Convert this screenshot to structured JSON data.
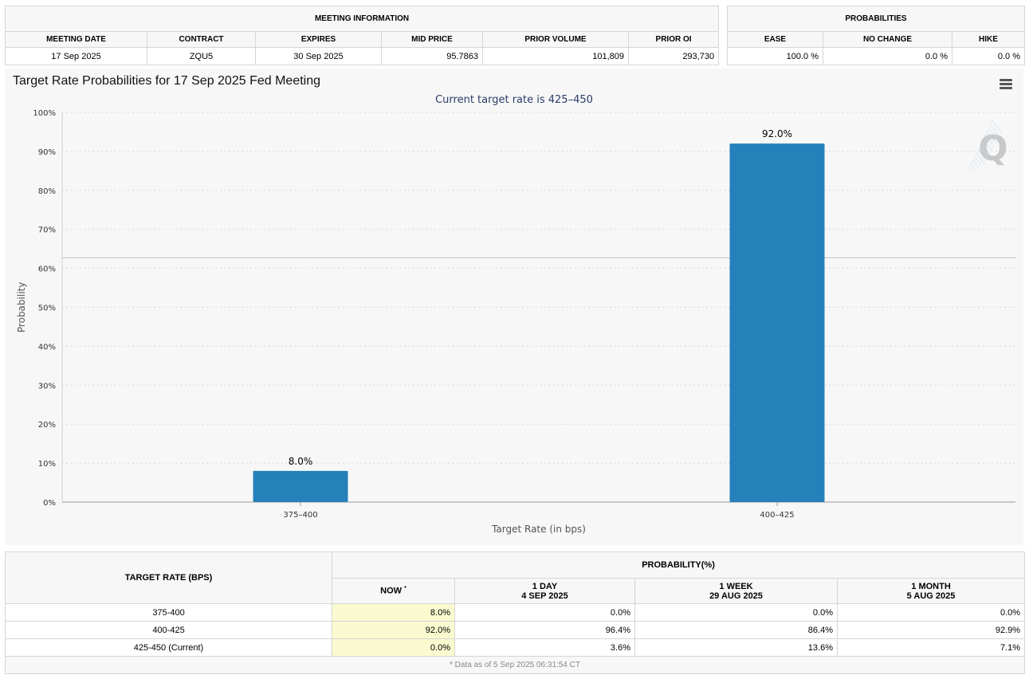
{
  "meeting_info": {
    "section_title": "MEETING INFORMATION",
    "headers": [
      "MEETING DATE",
      "CONTRACT",
      "EXPIRES",
      "MID PRICE",
      "PRIOR VOLUME",
      "PRIOR OI"
    ],
    "values": [
      "17 Sep 2025",
      "ZQU5",
      "30 Sep 2025",
      "95.7863",
      "101,809",
      "293,730"
    ]
  },
  "probabilities": {
    "section_title": "PROBABILITIES",
    "headers": [
      "EASE",
      "NO CHANGE",
      "HIKE"
    ],
    "values": [
      "100.0 %",
      "0.0 %",
      "0.0 %"
    ]
  },
  "chart": {
    "title": "Target Rate Probabilities for 17 Sep 2025 Fed Meeting",
    "subtitle": "Current target rate is 425–450",
    "watermark": "Q",
    "menu_icon": "hamburger-menu-icon"
  },
  "chart_data": {
    "type": "bar",
    "categories": [
      "375–400",
      "400–425"
    ],
    "values": [
      8.0,
      92.0
    ],
    "data_labels": [
      "8.0%",
      "92.0%"
    ],
    "xlabel": "Target Rate (in bps)",
    "ylabel": "Probability",
    "ylim": [
      0,
      100
    ],
    "yticks": [
      "0%",
      "10%",
      "20%",
      "30%",
      "40%",
      "50%",
      "60%",
      "70%",
      "80%",
      "90%",
      "100%"
    ],
    "grid": true,
    "bar_color": "#2680ba"
  },
  "rates_table": {
    "col_header": "TARGET RATE (BPS)",
    "prob_header": "PROBABILITY(%)",
    "periods": [
      {
        "label": "NOW",
        "date": "",
        "sup": "*"
      },
      {
        "label": "1 DAY",
        "date": "4 SEP 2025"
      },
      {
        "label": "1 WEEK",
        "date": "29 AUG 2025"
      },
      {
        "label": "1 MONTH",
        "date": "5 AUG 2025"
      }
    ],
    "rows": [
      {
        "rate": "375-400",
        "values": [
          "8.0%",
          "0.0%",
          "0.0%",
          "0.0%"
        ]
      },
      {
        "rate": "400-425",
        "values": [
          "92.0%",
          "96.4%",
          "86.4%",
          "92.9%"
        ]
      },
      {
        "rate": "425-450 (Current)",
        "values": [
          "0.0%",
          "3.6%",
          "13.6%",
          "7.1%"
        ]
      }
    ],
    "footnote": "* Data as of 5 Sep 2025 06:31:54 CT"
  }
}
